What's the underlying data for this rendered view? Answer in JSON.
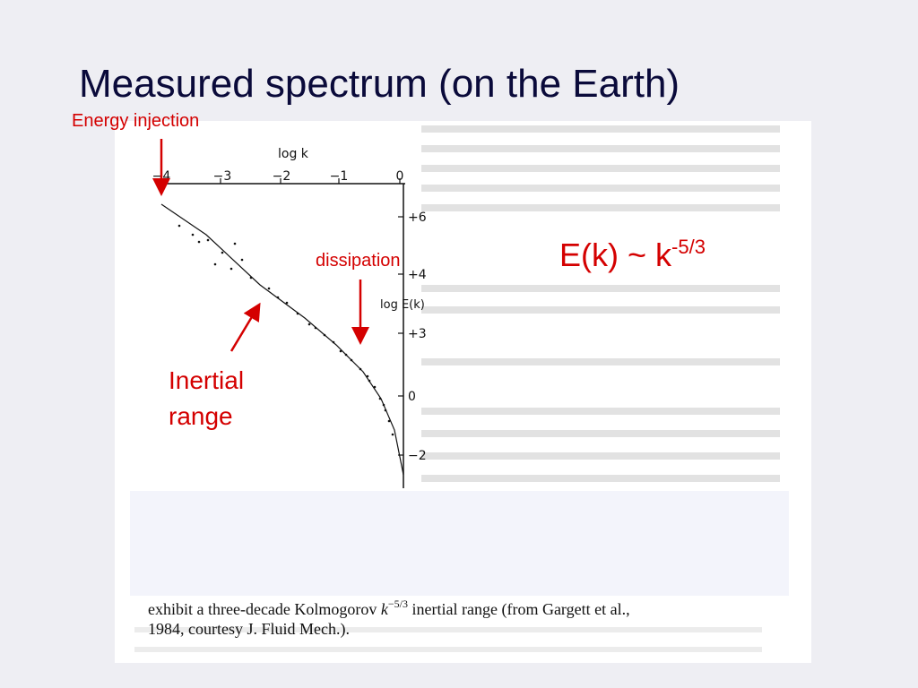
{
  "title": "Measured spectrum (on the Earth)",
  "annotations": {
    "energy_injection": "Energy injection",
    "dissipation": "dissipation",
    "inertial_range": [
      "Inertial",
      "range"
    ],
    "formula": {
      "base": "E(k) ~ k",
      "exponent": "-5/3"
    }
  },
  "figure": {
    "x_axis_label": "log k",
    "x_ticks": [
      "−4",
      "−3",
      "−2",
      "−1",
      "0"
    ],
    "y_axis_label": "log E(k)",
    "y_ticks": [
      "+6",
      "+4",
      "+3",
      "0",
      "−2"
    ],
    "caption": {
      "line1": {
        "before": "exhibit a three-decade Kolmogorov",
        "symbol": "k",
        "exponent": "−5/3",
        "after": "inertial range (from Gargett et al.,"
      },
      "line2": "1984, courtesy J. Fluid Mech.)."
    }
  }
}
